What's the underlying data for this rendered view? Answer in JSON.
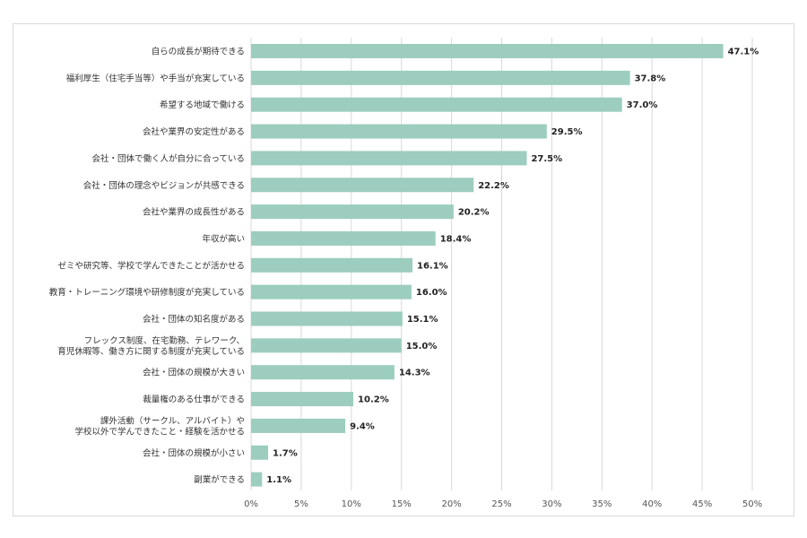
{
  "chart_data": {
    "type": "bar",
    "orientation": "horizontal",
    "bar_color": "#9ccdbf",
    "grid_color": "#d9d9d9",
    "xlim": [
      0,
      50
    ],
    "ticks": [
      "0%",
      "5%",
      "10%",
      "15%",
      "20%",
      "25%",
      "30%",
      "35%",
      "40%",
      "45%",
      "50%"
    ],
    "grid": true,
    "categories": [
      [
        "自らの成長が期待できる"
      ],
      [
        "福利厚生（住宅手当等）や手当が充実している"
      ],
      [
        "希望する地域で働ける"
      ],
      [
        "会社や業界の安定性がある"
      ],
      [
        "会社・団体で働く人が自分に合っている"
      ],
      [
        "会社・団体の理念やビジョンが共感できる"
      ],
      [
        "会社や業界の成長性がある"
      ],
      [
        "年収が高い"
      ],
      [
        "ゼミや研究等、学校で学んできたことが活かせる"
      ],
      [
        "教育・トレーニング環境や研修制度が充実している"
      ],
      [
        "会社・団体の知名度がある"
      ],
      [
        "フレックス制度、在宅勤務、テレワーク、",
        "育児休暇等、働き方に関する制度が充実している"
      ],
      [
        "会社・団体の規模が大きい"
      ],
      [
        "裁量権のある仕事ができる"
      ],
      [
        "課外活動（サークル、アルバイト）や",
        "学校以外で学んできたこと・経験を活かせる"
      ],
      [
        "会社・団体の規模が小さい"
      ],
      [
        "副業ができる"
      ]
    ],
    "values": [
      47.1,
      37.8,
      37.0,
      29.5,
      27.5,
      22.2,
      20.2,
      18.4,
      16.1,
      16.0,
      15.1,
      15.0,
      14.3,
      10.2,
      9.4,
      1.7,
      1.1
    ],
    "value_labels": [
      "47.1%",
      "37.8%",
      "37.0%",
      "29.5%",
      "27.5%",
      "22.2%",
      "20.2%",
      "18.4%",
      "16.1%",
      "16.0%",
      "15.1%",
      "15.0%",
      "14.3%",
      "10.2%",
      "9.4%",
      "1.7%",
      "1.1%"
    ]
  }
}
